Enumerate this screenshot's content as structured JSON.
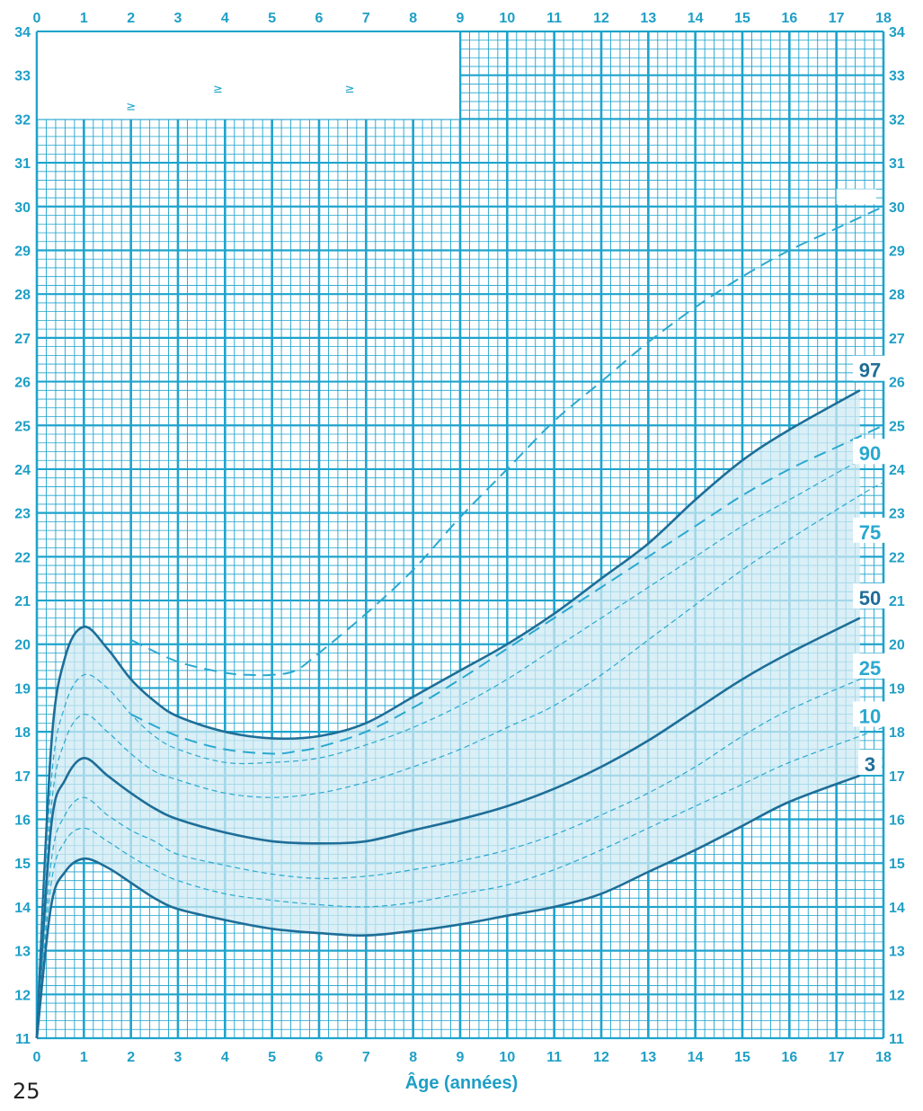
{
  "page_number": "25",
  "colors": {
    "grid": "#1fa3cc",
    "band_fill": "#cfeaf3",
    "major_curve": "#1e6e98",
    "minor_curve": "#33b0d6",
    "label_dark": "#1e6e98",
    "label_light": "#2aa8d0"
  },
  "chart_data": {
    "type": "line",
    "title": "",
    "xlabel": "Âge (années)",
    "ylabel": "",
    "xlim": [
      0,
      18
    ],
    "ylim": [
      11,
      34
    ],
    "x_ticks": [
      "0",
      "1",
      "2",
      "3",
      "4",
      "5",
      "6",
      "7",
      "8",
      "9",
      "10",
      "11",
      "12",
      "13",
      "14",
      "15",
      "16",
      "17",
      "18"
    ],
    "y_ticks": [
      "11",
      "12",
      "13",
      "14",
      "15",
      "16",
      "17",
      "18",
      "19",
      "20",
      "21",
      "22",
      "23",
      "24",
      "25",
      "26",
      "27",
      "28",
      "29",
      "30",
      "31",
      "32",
      "33",
      "34"
    ],
    "grid": true,
    "top_marks": [
      "≥",
      "≥",
      "≥"
    ],
    "series": [
      {
        "name": "97",
        "style": "solid",
        "color": "#1e6e98",
        "x": [
          0,
          0.3,
          0.6,
          1,
          1.5,
          2,
          2.5,
          3,
          4,
          5,
          6,
          7,
          8,
          9,
          10,
          11,
          12,
          13,
          14,
          15,
          16,
          17.5
        ],
        "y": [
          11,
          17.6,
          19.7,
          20.4,
          19.9,
          19.2,
          18.7,
          18.35,
          18.0,
          17.85,
          17.9,
          18.2,
          18.8,
          19.4,
          20.0,
          20.7,
          21.5,
          22.3,
          23.3,
          24.2,
          24.9,
          25.8
        ]
      },
      {
        "name": "90",
        "style": "dash",
        "color": "#2aa8d0",
        "x": [
          0,
          0.3,
          0.6,
          1,
          1.5,
          2,
          2.5,
          3,
          4,
          5,
          6,
          7,
          8,
          9,
          10,
          11,
          12,
          13,
          14,
          15,
          16,
          17.5,
          18
        ],
        "y": [
          11,
          16.8,
          18.6,
          19.3,
          19.0,
          18.4,
          17.9,
          17.6,
          17.3,
          17.3,
          17.4,
          17.7,
          18.1,
          18.6,
          19.2,
          19.9,
          20.6,
          21.3,
          22.0,
          22.7,
          23.3,
          24.2,
          24.4
        ]
      },
      {
        "name": "75",
        "style": "dash",
        "color": "#2aa8d0",
        "x": [
          0,
          0.3,
          0.6,
          1,
          1.5,
          2,
          2.5,
          3,
          4,
          5,
          6,
          7,
          8,
          9,
          10,
          11,
          12,
          13,
          14,
          15,
          16,
          17.5,
          18
        ],
        "y": [
          11,
          16.2,
          17.8,
          18.4,
          18.0,
          17.5,
          17.1,
          16.9,
          16.6,
          16.5,
          16.6,
          16.85,
          17.2,
          17.6,
          18.1,
          18.6,
          19.3,
          20.1,
          20.9,
          21.7,
          22.4,
          23.4,
          23.7
        ]
      },
      {
        "name": "50",
        "style": "solid",
        "color": "#1e6e98",
        "x": [
          0,
          0.3,
          0.6,
          1,
          1.5,
          2,
          2.5,
          3,
          4,
          5,
          6,
          7,
          8,
          9,
          10,
          11,
          12,
          13,
          14,
          15,
          16,
          17.5
        ],
        "y": [
          11,
          15.8,
          16.9,
          17.4,
          17.0,
          16.6,
          16.25,
          16.0,
          15.7,
          15.5,
          15.45,
          15.5,
          15.75,
          16.0,
          16.3,
          16.7,
          17.2,
          17.8,
          18.5,
          19.2,
          19.8,
          20.6
        ]
      },
      {
        "name": "25",
        "style": "dash",
        "color": "#2aa8d0",
        "x": [
          0,
          0.3,
          0.6,
          1,
          1.5,
          2,
          2.5,
          3,
          4,
          5,
          6,
          7,
          8,
          9,
          10,
          11,
          12,
          13,
          14,
          15,
          16,
          17.5,
          18
        ],
        "y": [
          11,
          15.0,
          16.1,
          16.5,
          16.1,
          15.75,
          15.5,
          15.2,
          14.95,
          14.75,
          14.65,
          14.7,
          14.85,
          15.05,
          15.3,
          15.65,
          16.1,
          16.6,
          17.2,
          17.9,
          18.5,
          19.2,
          19.4
        ]
      },
      {
        "name": "10",
        "style": "dash",
        "color": "#2aa8d0",
        "x": [
          0,
          0.3,
          0.6,
          1,
          1.5,
          2,
          2.5,
          3,
          4,
          5,
          6,
          7,
          8,
          9,
          10,
          11,
          12,
          13,
          14,
          15,
          16,
          17.5,
          18
        ],
        "y": [
          11,
          14.5,
          15.5,
          15.8,
          15.5,
          15.15,
          14.85,
          14.6,
          14.3,
          14.15,
          14.05,
          14.0,
          14.1,
          14.3,
          14.5,
          14.85,
          15.3,
          15.8,
          16.3,
          16.8,
          17.3,
          17.9,
          18.1
        ]
      },
      {
        "name": "3",
        "style": "solid",
        "color": "#1e6e98",
        "x": [
          0,
          0.3,
          0.6,
          1,
          1.5,
          2,
          2.5,
          3,
          4,
          5,
          6,
          7,
          8,
          9,
          10,
          11,
          12,
          13,
          14,
          15,
          16,
          17.5
        ],
        "y": [
          11,
          14.0,
          14.8,
          15.1,
          14.9,
          14.55,
          14.2,
          13.95,
          13.7,
          13.5,
          13.4,
          13.35,
          13.45,
          13.6,
          13.8,
          14.0,
          14.3,
          14.8,
          15.3,
          15.85,
          16.4,
          17.0
        ]
      }
    ],
    "reference_lines": [
      {
        "style": "long-dash",
        "color": "#2aa8d0",
        "x": [
          2,
          3,
          4,
          5,
          5.5,
          6,
          7,
          8,
          9,
          10,
          11,
          12,
          13,
          14,
          15,
          16,
          17,
          18
        ],
        "y": [
          18.4,
          17.9,
          17.6,
          17.5,
          17.55,
          17.65,
          18.0,
          18.55,
          19.2,
          19.9,
          20.6,
          21.3,
          22.0,
          22.7,
          23.4,
          24.0,
          24.5,
          25.0
        ]
      },
      {
        "style": "long-dash",
        "color": "#2aa8d0",
        "x": [
          2,
          3,
          4,
          4.5,
          5,
          5.5,
          6,
          7,
          8,
          9,
          10,
          11,
          12,
          13,
          14,
          15,
          16,
          17,
          18
        ],
        "y": [
          20.1,
          19.6,
          19.35,
          19.3,
          19.3,
          19.4,
          19.8,
          20.7,
          21.7,
          22.9,
          24.0,
          25.1,
          26.0,
          26.9,
          27.7,
          28.4,
          29.0,
          29.5,
          30.0
        ]
      }
    ]
  }
}
